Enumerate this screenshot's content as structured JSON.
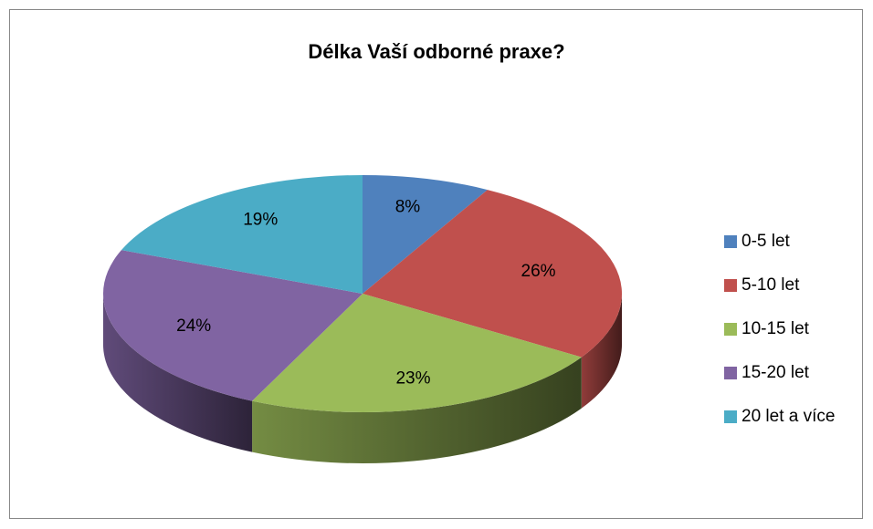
{
  "chart_data": {
    "type": "pie",
    "title": "Délka Vaší odborné praxe?",
    "categories": [
      "0-5 let",
      "5-10 let",
      "10-15 let",
      "15-20 let",
      "20 let a více"
    ],
    "values": [
      8,
      26,
      23,
      24,
      19
    ],
    "value_labels": [
      "8%",
      "26%",
      "23%",
      "24%",
      "19%"
    ],
    "colors": [
      "#4f81bd",
      "#c0504d",
      "#9bbb59",
      "#8064a2",
      "#4bacc6"
    ],
    "legend": "right"
  }
}
